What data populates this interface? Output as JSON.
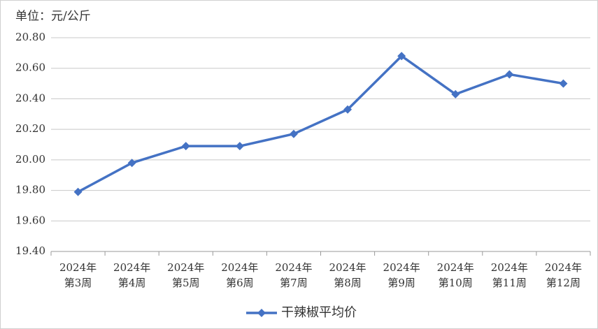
{
  "chart_data": {
    "type": "line",
    "annotation": "单位：元/公斤",
    "categories": [
      [
        "2024年",
        "第3周"
      ],
      [
        "2024年",
        "第4周"
      ],
      [
        "2024年",
        "第5周"
      ],
      [
        "2024年",
        "第6周"
      ],
      [
        "2024年",
        "第7周"
      ],
      [
        "2024年",
        "第8周"
      ],
      [
        "2024年",
        "第9周"
      ],
      [
        "2024年",
        "第10周"
      ],
      [
        "2024年",
        "第11周"
      ],
      [
        "2024年",
        "第12周"
      ]
    ],
    "series": [
      {
        "name": "干辣椒平均价",
        "color": "#4472c4",
        "values": [
          19.79,
          19.98,
          20.09,
          20.09,
          20.17,
          20.33,
          20.68,
          20.43,
          20.56,
          20.5
        ]
      }
    ],
    "ylim": [
      19.4,
      20.8
    ],
    "yticks": [
      {
        "value": 19.4,
        "label": "19.40"
      },
      {
        "value": 19.6,
        "label": "19.60"
      },
      {
        "value": 19.8,
        "label": "19.80"
      },
      {
        "value": 20.0,
        "label": "20.00"
      },
      {
        "value": 20.2,
        "label": "20.20"
      },
      {
        "value": 20.4,
        "label": "20.40"
      },
      {
        "value": 20.6,
        "label": "20.60"
      },
      {
        "value": 20.8,
        "label": "20.80"
      }
    ],
    "grid": true,
    "legend": "bottom"
  }
}
